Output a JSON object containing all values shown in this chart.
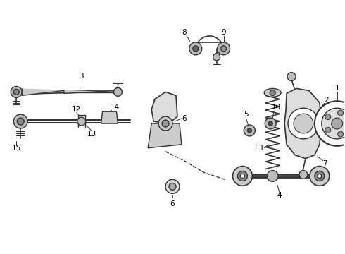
{
  "bg_color": "#ffffff",
  "line_color": "#333333",
  "label_color": "#000000",
  "fig_width": 4.9,
  "fig_height": 3.6,
  "dpi": 100,
  "font_size": 7.5
}
